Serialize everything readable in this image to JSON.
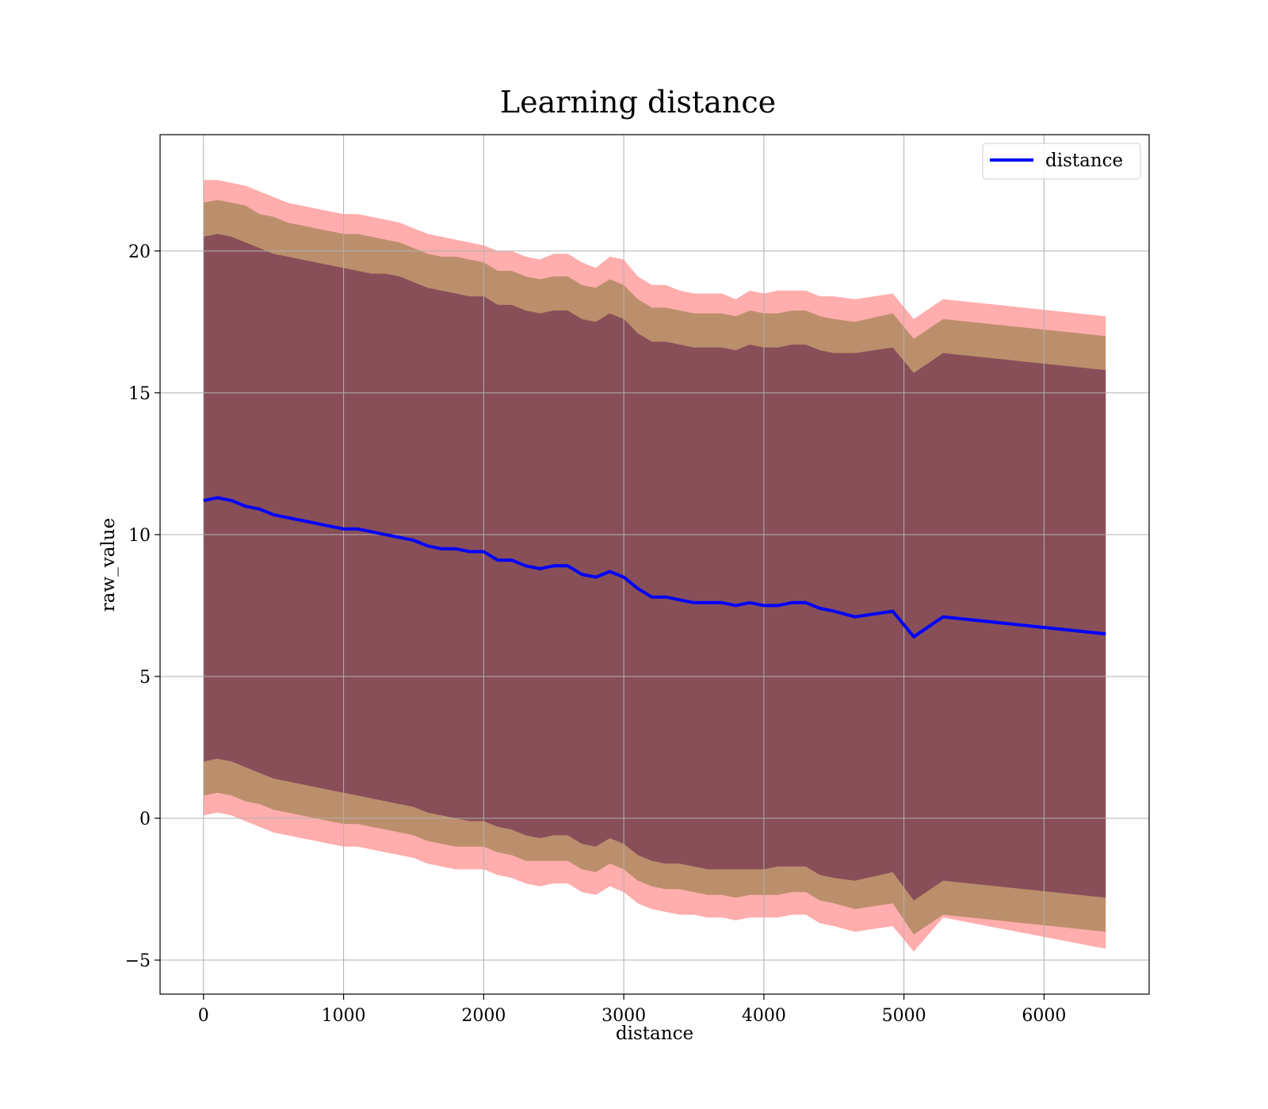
{
  "chart_data": {
    "type": "line",
    "title": "Learning distance",
    "xlabel": "distance",
    "ylabel": "raw_value",
    "xlim": [
      -310,
      6750
    ],
    "ylim": [
      -6.2,
      24.1
    ],
    "xticks": [
      0,
      1000,
      2000,
      3000,
      4000,
      5000,
      6000
    ],
    "yticks": [
      -5,
      0,
      5,
      10,
      15,
      20
    ],
    "ytick_labels": [
      "−5",
      "0",
      "5",
      "10",
      "15",
      "20"
    ],
    "grid": true,
    "legend_position": "top-right",
    "legend": [
      {
        "label": "distance",
        "color": "#0000ff"
      }
    ],
    "colors": {
      "line": "#0000ff",
      "outer_band": "#ff9999",
      "middle_band": "#b08a60",
      "inner_band": "#7a3f55"
    },
    "series": [
      {
        "name": "distance",
        "x": [
          0,
          100,
          200,
          300,
          400,
          500,
          600,
          700,
          800,
          900,
          1000,
          1100,
          1200,
          1300,
          1400,
          1500,
          1600,
          1700,
          1800,
          1900,
          2000,
          2100,
          2200,
          2300,
          2400,
          2500,
          2600,
          2700,
          2800,
          2900,
          3000,
          3100,
          3200,
          3300,
          3400,
          3500,
          3600,
          3700,
          3800,
          3900,
          4000,
          4100,
          4200,
          4300,
          4400,
          4500,
          4650,
          4920,
          5070,
          5280,
          6440
        ],
        "y": [
          11.2,
          11.3,
          11.2,
          11.0,
          10.9,
          10.7,
          10.6,
          10.5,
          10.4,
          10.3,
          10.2,
          10.2,
          10.1,
          10.0,
          9.9,
          9.8,
          9.6,
          9.5,
          9.5,
          9.4,
          9.4,
          9.1,
          9.1,
          8.9,
          8.8,
          8.9,
          8.9,
          8.6,
          8.5,
          8.7,
          8.5,
          8.1,
          7.8,
          7.8,
          7.7,
          7.6,
          7.6,
          7.6,
          7.5,
          7.6,
          7.5,
          7.5,
          7.6,
          7.6,
          7.4,
          7.3,
          7.1,
          7.3,
          6.4,
          7.1,
          6.5
        ]
      }
    ],
    "bands": [
      {
        "name": "outer",
        "x": [
          0,
          100,
          200,
          300,
          400,
          500,
          600,
          700,
          800,
          900,
          1000,
          1100,
          1200,
          1300,
          1400,
          1500,
          1600,
          1700,
          1800,
          1900,
          2000,
          2100,
          2200,
          2300,
          2400,
          2500,
          2600,
          2700,
          2800,
          2900,
          3000,
          3100,
          3200,
          3300,
          3400,
          3500,
          3600,
          3700,
          3800,
          3900,
          4000,
          4100,
          4200,
          4300,
          4400,
          4500,
          4650,
          4920,
          5070,
          5280,
          6440
        ],
        "upper": [
          22.5,
          22.5,
          22.4,
          22.3,
          22.1,
          21.9,
          21.7,
          21.6,
          21.5,
          21.4,
          21.3,
          21.3,
          21.2,
          21.1,
          21.0,
          20.8,
          20.6,
          20.5,
          20.4,
          20.3,
          20.2,
          20.0,
          20.0,
          19.8,
          19.7,
          19.9,
          19.9,
          19.6,
          19.4,
          19.8,
          19.7,
          19.1,
          18.8,
          18.8,
          18.6,
          18.5,
          18.5,
          18.5,
          18.3,
          18.6,
          18.5,
          18.6,
          18.6,
          18.6,
          18.4,
          18.4,
          18.3,
          18.5,
          17.6,
          18.3,
          17.7
        ],
        "lower": [
          0.1,
          0.2,
          0.1,
          -0.1,
          -0.3,
          -0.5,
          -0.6,
          -0.7,
          -0.8,
          -0.9,
          -1.0,
          -1.0,
          -1.1,
          -1.2,
          -1.3,
          -1.4,
          -1.6,
          -1.7,
          -1.8,
          -1.8,
          -1.8,
          -2.0,
          -2.1,
          -2.3,
          -2.4,
          -2.3,
          -2.3,
          -2.6,
          -2.7,
          -2.4,
          -2.6,
          -3.0,
          -3.2,
          -3.3,
          -3.4,
          -3.4,
          -3.5,
          -3.5,
          -3.6,
          -3.5,
          -3.5,
          -3.5,
          -3.4,
          -3.4,
          -3.7,
          -3.8,
          -4.0,
          -3.8,
          -4.7,
          -3.5,
          -4.6
        ]
      },
      {
        "name": "middle",
        "x": [
          0,
          100,
          200,
          300,
          400,
          500,
          600,
          700,
          800,
          900,
          1000,
          1100,
          1200,
          1300,
          1400,
          1500,
          1600,
          1700,
          1800,
          1900,
          2000,
          2100,
          2200,
          2300,
          2400,
          2500,
          2600,
          2700,
          2800,
          2900,
          3000,
          3100,
          3200,
          3300,
          3400,
          3500,
          3600,
          3700,
          3800,
          3900,
          4000,
          4100,
          4200,
          4300,
          4400,
          4500,
          4650,
          4920,
          5070,
          5280,
          6440
        ],
        "upper": [
          21.7,
          21.8,
          21.7,
          21.6,
          21.3,
          21.2,
          21.0,
          20.9,
          20.8,
          20.7,
          20.6,
          20.6,
          20.5,
          20.4,
          20.3,
          20.1,
          19.9,
          19.8,
          19.8,
          19.7,
          19.6,
          19.3,
          19.3,
          19.1,
          19.0,
          19.1,
          19.1,
          18.8,
          18.7,
          19.0,
          18.8,
          18.3,
          18.0,
          18.0,
          17.9,
          17.8,
          17.8,
          17.8,
          17.7,
          17.9,
          17.8,
          17.8,
          17.9,
          17.9,
          17.7,
          17.6,
          17.5,
          17.8,
          16.9,
          17.6,
          17.0
        ],
        "lower": [
          0.8,
          0.9,
          0.8,
          0.6,
          0.5,
          0.3,
          0.2,
          0.1,
          0.0,
          -0.1,
          -0.2,
          -0.2,
          -0.3,
          -0.4,
          -0.5,
          -0.6,
          -0.8,
          -0.9,
          -1.0,
          -1.0,
          -1.0,
          -1.2,
          -1.3,
          -1.5,
          -1.5,
          -1.5,
          -1.5,
          -1.8,
          -1.9,
          -1.6,
          -1.8,
          -2.2,
          -2.4,
          -2.5,
          -2.5,
          -2.6,
          -2.7,
          -2.7,
          -2.8,
          -2.7,
          -2.7,
          -2.7,
          -2.6,
          -2.6,
          -2.9,
          -3.0,
          -3.2,
          -3.0,
          -4.1,
          -3.4,
          -4.0
        ]
      },
      {
        "name": "inner",
        "x": [
          0,
          100,
          200,
          300,
          400,
          500,
          600,
          700,
          800,
          900,
          1000,
          1100,
          1200,
          1300,
          1400,
          1500,
          1600,
          1700,
          1800,
          1900,
          2000,
          2100,
          2200,
          2300,
          2400,
          2500,
          2600,
          2700,
          2800,
          2900,
          3000,
          3100,
          3200,
          3300,
          3400,
          3500,
          3600,
          3700,
          3800,
          3900,
          4000,
          4100,
          4200,
          4300,
          4400,
          4500,
          4650,
          4920,
          5070,
          5280,
          6440
        ],
        "upper": [
          20.5,
          20.6,
          20.5,
          20.3,
          20.1,
          19.9,
          19.8,
          19.7,
          19.6,
          19.5,
          19.4,
          19.3,
          19.2,
          19.2,
          19.1,
          18.9,
          18.7,
          18.6,
          18.5,
          18.4,
          18.4,
          18.1,
          18.1,
          17.9,
          17.8,
          17.9,
          17.9,
          17.6,
          17.5,
          17.8,
          17.6,
          17.1,
          16.8,
          16.8,
          16.7,
          16.6,
          16.6,
          16.6,
          16.5,
          16.7,
          16.6,
          16.6,
          16.7,
          16.7,
          16.5,
          16.4,
          16.4,
          16.6,
          15.7,
          16.4,
          15.8
        ],
        "lower": [
          2.0,
          2.1,
          2.0,
          1.8,
          1.6,
          1.4,
          1.3,
          1.2,
          1.1,
          1.0,
          0.9,
          0.8,
          0.7,
          0.6,
          0.5,
          0.4,
          0.2,
          0.1,
          0.0,
          -0.1,
          -0.1,
          -0.3,
          -0.4,
          -0.6,
          -0.7,
          -0.6,
          -0.6,
          -0.9,
          -1.0,
          -0.7,
          -0.9,
          -1.3,
          -1.5,
          -1.6,
          -1.6,
          -1.7,
          -1.8,
          -1.8,
          -1.8,
          -1.8,
          -1.8,
          -1.7,
          -1.7,
          -1.7,
          -2.0,
          -2.1,
          -2.2,
          -1.9,
          -2.9,
          -2.2,
          -2.8
        ]
      }
    ]
  }
}
